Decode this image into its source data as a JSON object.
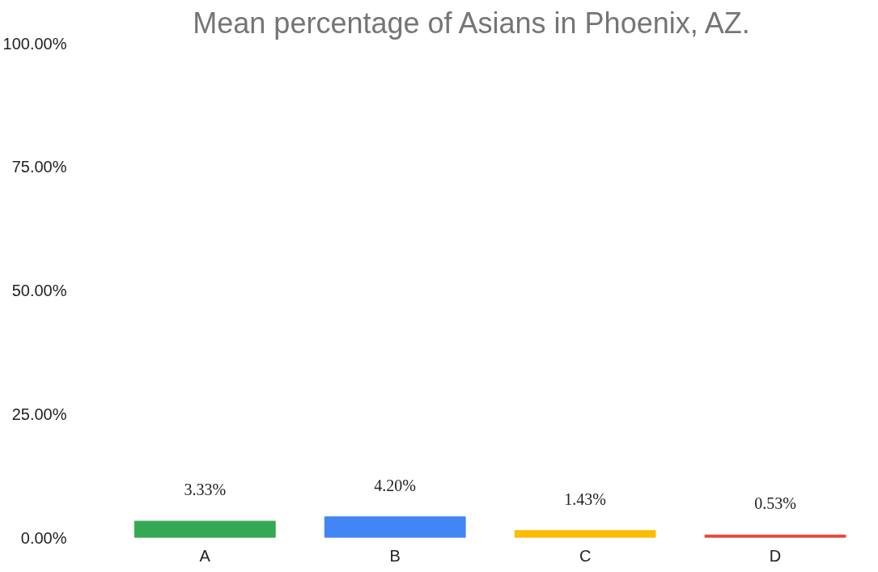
{
  "chart_data": {
    "type": "bar",
    "title": "Mean percentage of Asians in Phoenix, AZ.",
    "categories": [
      "A",
      "B",
      "C",
      "D"
    ],
    "values": [
      3.33,
      4.2,
      1.43,
      0.53
    ],
    "colors": [
      "#34a853",
      "#4285f4",
      "#fbbc04",
      "#ea4335"
    ],
    "value_labels": [
      "3.33%",
      "4.20%",
      "1.43%",
      "0.53%"
    ],
    "ylim": [
      0,
      100
    ],
    "yticks": [
      {
        "value": 0,
        "label": "0.00%"
      },
      {
        "value": 25,
        "label": "25.00%"
      },
      {
        "value": 50,
        "label": "50.00%"
      },
      {
        "value": 75,
        "label": "75.00%"
      },
      {
        "value": 100,
        "label": "100.00%"
      }
    ],
    "legend": false
  }
}
